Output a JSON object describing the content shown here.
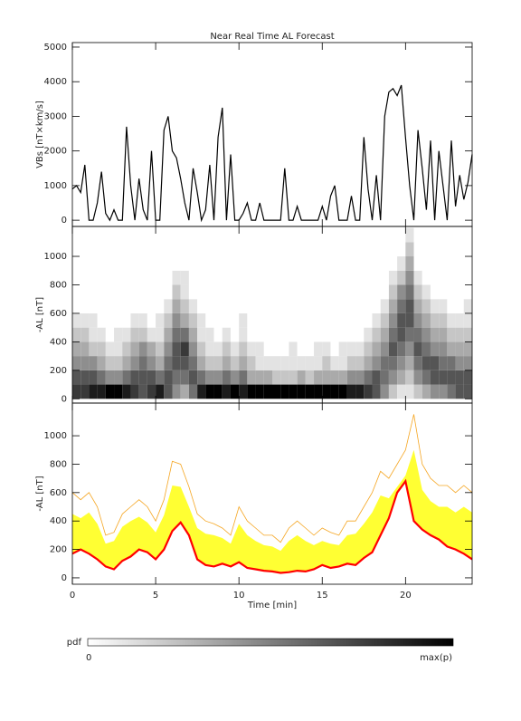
{
  "chart_data": [
    {
      "type": "line",
      "title": "Near Real Time AL Forecast",
      "ylabel": "VBs [nT×km/s]",
      "color": "#000000",
      "xlim": [
        0,
        24
      ],
      "ylim": [
        -180,
        5130
      ],
      "yticks": [
        0,
        1000,
        2000,
        3000,
        4000,
        5000
      ],
      "x": [
        0,
        0.25,
        0.5,
        0.75,
        1,
        1.25,
        1.5,
        1.75,
        2,
        2.25,
        2.5,
        2.75,
        3,
        3.25,
        3.5,
        3.75,
        4,
        4.25,
        4.5,
        4.75,
        5,
        5.25,
        5.5,
        5.75,
        6,
        6.25,
        6.5,
        6.75,
        7,
        7.25,
        7.5,
        7.75,
        8,
        8.25,
        8.5,
        8.75,
        9,
        9.25,
        9.5,
        9.75,
        10,
        10.25,
        10.5,
        10.75,
        11,
        11.25,
        11.5,
        11.75,
        12,
        12.25,
        12.5,
        12.75,
        13,
        13.25,
        13.5,
        13.75,
        14,
        14.25,
        14.5,
        14.75,
        15,
        15.25,
        15.5,
        15.75,
        16,
        16.25,
        16.5,
        16.75,
        17,
        17.25,
        17.5,
        17.75,
        18,
        18.25,
        18.5,
        18.75,
        19,
        19.25,
        19.5,
        19.75,
        20,
        20.25,
        20.5,
        20.75,
        21,
        21.25,
        21.5,
        21.75,
        22,
        22.25,
        22.5,
        22.75,
        23,
        23.25,
        23.5,
        23.75,
        24
      ],
      "values": [
        900,
        1000,
        800,
        1600,
        0,
        0,
        500,
        1400,
        200,
        0,
        300,
        0,
        0,
        2700,
        1000,
        0,
        1200,
        300,
        0,
        2000,
        0,
        0,
        2600,
        3000,
        2000,
        1800,
        1200,
        500,
        0,
        1500,
        800,
        0,
        300,
        1600,
        0,
        2400,
        3250,
        0,
        1900,
        0,
        0,
        200,
        500,
        0,
        0,
        500,
        0,
        0,
        0,
        0,
        0,
        1500,
        0,
        0,
        400,
        0,
        0,
        0,
        0,
        0,
        400,
        0,
        700,
        1000,
        0,
        0,
        0,
        700,
        0,
        0,
        2400,
        900,
        0,
        1300,
        0,
        3000,
        3700,
        3800,
        3600,
        3900,
        2400,
        1000,
        0,
        2600,
        1500,
        300,
        2300,
        0,
        2000,
        1000,
        0,
        2300,
        400,
        1300,
        600,
        1100,
        1900
      ]
    },
    {
      "type": "heatmap",
      "ylabel": "-AL [nT]",
      "xlim": [
        0,
        24
      ],
      "ylim": [
        -30,
        1210
      ],
      "yticks": [
        0,
        200,
        400,
        600,
        800,
        1000
      ],
      "zlim": [
        0,
        9
      ],
      "x_step": 0.5,
      "y_step": 100,
      "x": [
        0,
        0.5,
        1,
        1.5,
        2,
        2.5,
        3,
        3.5,
        4,
        4.5,
        5,
        5.5,
        6,
        6.5,
        7,
        7.5,
        8,
        8.5,
        9,
        9.5,
        10,
        10.5,
        11,
        11.5,
        12,
        12.5,
        13,
        13.5,
        14,
        14.5,
        15,
        15.5,
        16,
        16.5,
        17,
        17.5,
        18,
        18.5,
        19,
        19.5,
        20,
        20.5,
        21,
        21.5,
        22,
        22.5,
        23,
        23.5
      ],
      "y": [
        0,
        100,
        200,
        300,
        400,
        500,
        600,
        700,
        800,
        900,
        1000,
        1100
      ],
      "z": [
        [
          7,
          6,
          4,
          3,
          2,
          1,
          0,
          0,
          0,
          0,
          0,
          0
        ],
        [
          7,
          6,
          4,
          3,
          2,
          1,
          0,
          0,
          0,
          0,
          0,
          0
        ],
        [
          8,
          6,
          4,
          2,
          1,
          1,
          0,
          0,
          0,
          0,
          0,
          0
        ],
        [
          8,
          5,
          3,
          2,
          1,
          0,
          0,
          0,
          0,
          0,
          0,
          0
        ],
        [
          9,
          4,
          2,
          1,
          0,
          0,
          0,
          0,
          0,
          0,
          0,
          0
        ],
        [
          9,
          4,
          2,
          1,
          1,
          0,
          0,
          0,
          0,
          0,
          0,
          0
        ],
        [
          8,
          5,
          3,
          2,
          1,
          0,
          0,
          0,
          0,
          0,
          0,
          0
        ],
        [
          7,
          6,
          4,
          3,
          2,
          1,
          0,
          0,
          0,
          0,
          0,
          0
        ],
        [
          6,
          6,
          5,
          4,
          2,
          1,
          0,
          0,
          0,
          0,
          0,
          0
        ],
        [
          7,
          6,
          4,
          3,
          1,
          0,
          0,
          0,
          0,
          0,
          0,
          0
        ],
        [
          8,
          5,
          3,
          2,
          1,
          1,
          0,
          0,
          0,
          0,
          0,
          0
        ],
        [
          6,
          6,
          5,
          4,
          3,
          2,
          1,
          0,
          0,
          0,
          0,
          0
        ],
        [
          4,
          5,
          6,
          6,
          5,
          4,
          3,
          2,
          1,
          0,
          0,
          0
        ],
        [
          3,
          5,
          6,
          7,
          5,
          3,
          2,
          1,
          1,
          0,
          0,
          0
        ],
        [
          5,
          6,
          5,
          4,
          3,
          2,
          1,
          0,
          0,
          0,
          0,
          0
        ],
        [
          8,
          5,
          3,
          2,
          1,
          1,
          0,
          0,
          0,
          0,
          0,
          0
        ],
        [
          9,
          4,
          2,
          1,
          1,
          0,
          0,
          0,
          0,
          0,
          0,
          0
        ],
        [
          9,
          4,
          2,
          1,
          0,
          0,
          0,
          0,
          0,
          0,
          0,
          0
        ],
        [
          8,
          5,
          3,
          2,
          1,
          0,
          0,
          0,
          0,
          0,
          0,
          0
        ],
        [
          9,
          4,
          2,
          1,
          0,
          0,
          0,
          0,
          0,
          0,
          0,
          0
        ],
        [
          8,
          5,
          3,
          2,
          1,
          1,
          0,
          0,
          0,
          0,
          0,
          0
        ],
        [
          9,
          3,
          2,
          1,
          0,
          0,
          0,
          0,
          0,
          0,
          0,
          0
        ],
        [
          9,
          3,
          1,
          1,
          0,
          0,
          0,
          0,
          0,
          0,
          0,
          0
        ],
        [
          9,
          3,
          1,
          0,
          0,
          0,
          0,
          0,
          0,
          0,
          0,
          0
        ],
        [
          9,
          2,
          1,
          0,
          0,
          0,
          0,
          0,
          0,
          0,
          0,
          0
        ],
        [
          9,
          2,
          1,
          0,
          0,
          0,
          0,
          0,
          0,
          0,
          0,
          0
        ],
        [
          9,
          2,
          1,
          1,
          0,
          0,
          0,
          0,
          0,
          0,
          0,
          0
        ],
        [
          9,
          3,
          1,
          0,
          0,
          0,
          0,
          0,
          0,
          0,
          0,
          0
        ],
        [
          9,
          2,
          1,
          0,
          0,
          0,
          0,
          0,
          0,
          0,
          0,
          0
        ],
        [
          9,
          3,
          1,
          1,
          0,
          0,
          0,
          0,
          0,
          0,
          0,
          0
        ],
        [
          9,
          3,
          2,
          1,
          0,
          0,
          0,
          0,
          0,
          0,
          0,
          0
        ],
        [
          9,
          3,
          1,
          0,
          0,
          0,
          0,
          0,
          0,
          0,
          0,
          0
        ],
        [
          9,
          3,
          1,
          1,
          0,
          0,
          0,
          0,
          0,
          0,
          0,
          0
        ],
        [
          8,
          4,
          2,
          1,
          0,
          0,
          0,
          0,
          0,
          0,
          0,
          0
        ],
        [
          8,
          4,
          2,
          1,
          0,
          0,
          0,
          0,
          0,
          0,
          0,
          0
        ],
        [
          7,
          5,
          3,
          2,
          1,
          0,
          0,
          0,
          0,
          0,
          0,
          0
        ],
        [
          6,
          6,
          4,
          3,
          2,
          1,
          0,
          0,
          0,
          0,
          0,
          0
        ],
        [
          4,
          5,
          5,
          4,
          3,
          2,
          1,
          0,
          0,
          0,
          0,
          0
        ],
        [
          2,
          4,
          5,
          6,
          5,
          4,
          3,
          2,
          1,
          0,
          0,
          0
        ],
        [
          1,
          3,
          4,
          5,
          6,
          6,
          5,
          4,
          2,
          1,
          0,
          0
        ],
        [
          1,
          2,
          3,
          4,
          5,
          6,
          6,
          5,
          4,
          3,
          2,
          1
        ],
        [
          2,
          4,
          5,
          6,
          5,
          4,
          3,
          2,
          1,
          0,
          0,
          0
        ],
        [
          3,
          5,
          6,
          5,
          4,
          3,
          2,
          1,
          0,
          0,
          0,
          0
        ],
        [
          4,
          6,
          6,
          4,
          3,
          2,
          1,
          0,
          0,
          0,
          0,
          0
        ],
        [
          4,
          6,
          5,
          4,
          3,
          2,
          1,
          0,
          0,
          0,
          0,
          0
        ],
        [
          5,
          6,
          5,
          3,
          2,
          1,
          0,
          0,
          0,
          0,
          0,
          0
        ],
        [
          6,
          6,
          4,
          3,
          2,
          1,
          0,
          0,
          0,
          0,
          0,
          0
        ],
        [
          6,
          6,
          4,
          3,
          2,
          1,
          1,
          0,
          0,
          0,
          0,
          0
        ]
      ]
    },
    {
      "type": "band",
      "ylabel": "-AL [nT]",
      "xlabel": "Time [min]",
      "xlim": [
        0,
        24
      ],
      "ylim": [
        -45,
        1230
      ],
      "xticks": [
        0,
        5,
        10,
        15,
        20
      ],
      "yticks": [
        0,
        200,
        400,
        600,
        800,
        1000
      ],
      "color": "#ff0000",
      "band_color": "#ffff33",
      "envelope_color": "#f5a623",
      "x": [
        0,
        0.5,
        1,
        1.5,
        2,
        2.5,
        3,
        3.5,
        4,
        4.5,
        5,
        5.5,
        6,
        6.5,
        7,
        7.5,
        8,
        8.5,
        9,
        9.5,
        10,
        10.5,
        11,
        11.5,
        12,
        12.5,
        13,
        13.5,
        14,
        14.5,
        15,
        15.5,
        16,
        16.5,
        17,
        17.5,
        18,
        18.5,
        19,
        19.5,
        20,
        20.5,
        21,
        21.5,
        22,
        22.5,
        23,
        23.5,
        24
      ],
      "values": [
        170,
        200,
        170,
        130,
        80,
        60,
        120,
        150,
        200,
        180,
        130,
        200,
        330,
        390,
        300,
        130,
        90,
        80,
        100,
        80,
        110,
        70,
        60,
        50,
        45,
        35,
        40,
        50,
        45,
        60,
        90,
        70,
        80,
        100,
        90,
        140,
        180,
        300,
        420,
        600,
        680,
        400,
        340,
        300,
        270,
        220,
        200,
        170,
        130
      ],
      "band_upper": [
        450,
        420,
        460,
        380,
        240,
        260,
        360,
        400,
        430,
        390,
        320,
        440,
        650,
        640,
        500,
        350,
        310,
        300,
        280,
        240,
        380,
        300,
        260,
        230,
        220,
        190,
        260,
        300,
        260,
        230,
        260,
        240,
        230,
        300,
        310,
        380,
        460,
        580,
        560,
        640,
        720,
        900,
        620,
        540,
        500,
        500,
        460,
        500,
        460
      ],
      "envelope": [
        600,
        550,
        600,
        500,
        300,
        320,
        450,
        500,
        550,
        500,
        400,
        550,
        820,
        800,
        640,
        450,
        400,
        380,
        350,
        300,
        500,
        400,
        350,
        300,
        300,
        250,
        350,
        400,
        350,
        300,
        350,
        320,
        300,
        400,
        400,
        500,
        600,
        750,
        700,
        800,
        900,
        1150,
        800,
        700,
        650,
        650,
        600,
        650,
        600
      ]
    }
  ],
  "colorbar": {
    "label": "pdf",
    "min_label": "0",
    "max_label": "max(p)"
  }
}
